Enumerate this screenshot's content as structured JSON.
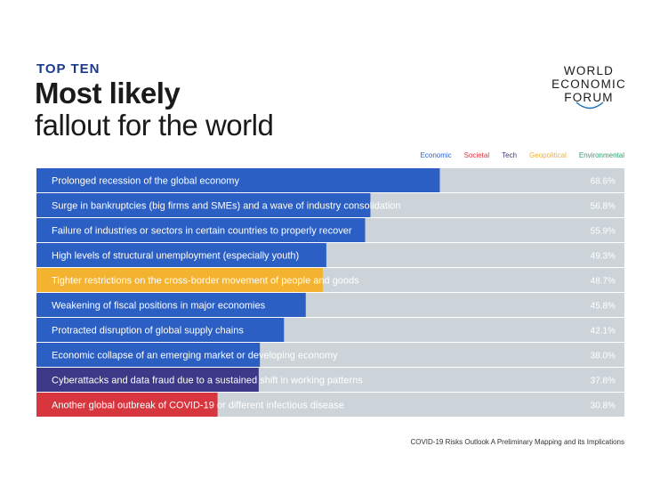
{
  "header": {
    "kicker": "TOP TEN",
    "title_line1": "Most likely",
    "title_line2": "fallout for the world"
  },
  "logo": {
    "line1": "WORLD",
    "line2": "ECONOMIC",
    "line3": "FORUM"
  },
  "source": "COVID-19 Risks Outlook A Preliminary Mapping and its Implications",
  "colors": {
    "Economic": "#2b5fc4",
    "Societal": "#d7363f",
    "Tech": "#3b3988",
    "Geopolitical": "#f3b22f",
    "Environmental": "#2fa26a",
    "track": "#ccd4d9"
  },
  "chart_data": {
    "type": "bar",
    "orientation": "horizontal",
    "legend": [
      "Economic",
      "Societal",
      "Tech",
      "Geopolitical",
      "Environmental"
    ],
    "legend_placement": "top-right",
    "xlim": [
      0,
      100
    ],
    "categories": [
      "Prolonged recession of the global economy",
      "Surge in bankruptcies (big firms and SMEs) and a wave of industry consolidation",
      "Failure of industries or sectors in certain countries to properly recover",
      "High levels of structural unemployment (especially youth)",
      "Tighter restrictions on the cross-border movement of people and goods",
      "Weakening of fiscal positions in major economies",
      "Protracted disruption of global supply chains",
      "Economic collapse of an emerging market or developing economy",
      "Cyberattacks and data fraud due to a sustained shift in working patterns",
      "Another global outbreak of COVID-19 or different infectious disease"
    ],
    "values": [
      68.6,
      56.8,
      55.9,
      49.3,
      48.7,
      45.8,
      42.1,
      38.0,
      37.8,
      30.8
    ],
    "value_labels": [
      "68.6%",
      "56.8%",
      "55.9%",
      "49.3%",
      "48.7%",
      "45.8%",
      "42.1%",
      "38.0%",
      "37.8%",
      "30.8%"
    ],
    "groups": [
      "Economic",
      "Economic",
      "Economic",
      "Economic",
      "Geopolitical",
      "Economic",
      "Economic",
      "Economic",
      "Tech",
      "Societal"
    ]
  }
}
